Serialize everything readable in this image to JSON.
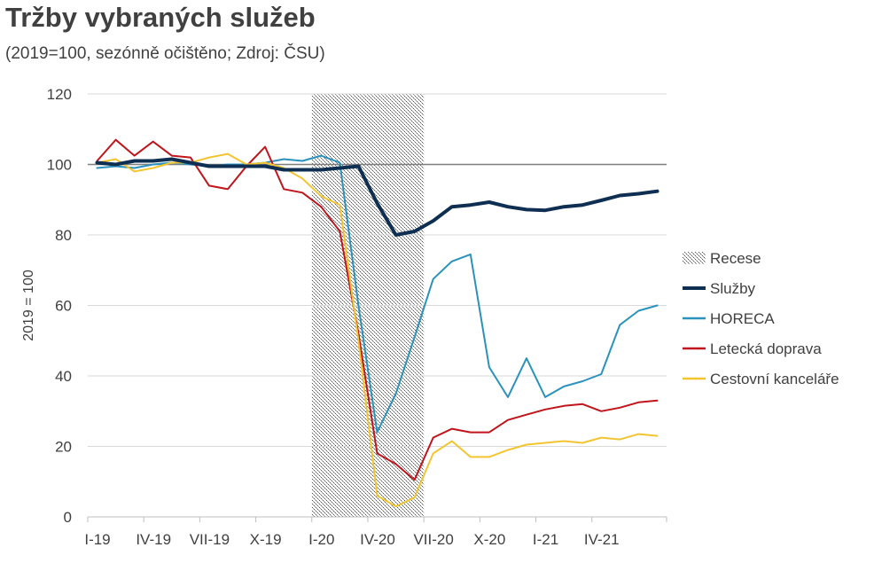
{
  "chart_data": {
    "type": "line",
    "title": "Tržby vybraných služeb",
    "subtitle": "(2019=100, sezónně očištěno; Zdroj: ČSU)",
    "ylabel": "2019 = 100",
    "xlabel": "",
    "ylim": [
      0,
      120
    ],
    "yticks": [
      0,
      20,
      40,
      60,
      80,
      100,
      120
    ],
    "grid": true,
    "legend_position": "right",
    "reference_line": 100,
    "x_tick_labels": [
      "I-19",
      "IV-19",
      "VII-19",
      "X-19",
      "I-20",
      "IV-20",
      "VII-20",
      "X-20",
      "I-21",
      "IV-21"
    ],
    "x_tick_every": 3,
    "x_count": 31,
    "recession": {
      "name": "Recese",
      "start_month_index": 12,
      "end_month_index": 18
    },
    "series": [
      {
        "name": "Služby",
        "color": "#0e2f52",
        "width": 4,
        "values": [
          100.5,
          100.0,
          101.0,
          101.0,
          101.5,
          100.5,
          99.5,
          99.5,
          99.5,
          99.5,
          98.5,
          98.5,
          98.5,
          99.0,
          99.5,
          89.0,
          80.0,
          81.0,
          84.0,
          88.0,
          88.5,
          89.3,
          88.0,
          87.2,
          87.0,
          88.0,
          88.5,
          89.8,
          91.2,
          91.7,
          92.4
        ]
      },
      {
        "name": "HORECA",
        "color": "#2a92bd",
        "width": 2,
        "values": [
          99.0,
          99.5,
          99.0,
          100.0,
          100.5,
          100.0,
          99.5,
          100.0,
          100.0,
          100.5,
          101.5,
          101.0,
          102.5,
          100.5,
          60.0,
          24.0,
          35.0,
          51.0,
          67.5,
          72.5,
          74.5,
          42.5,
          34.0,
          45.0,
          34.0,
          37.0,
          38.5,
          40.5,
          54.5,
          58.5,
          60.0
        ]
      },
      {
        "name": "Letecká doprava",
        "color": "#c0151c",
        "width": 2,
        "values": [
          101.0,
          107.0,
          102.5,
          106.5,
          102.5,
          102.0,
          94.0,
          93.0,
          99.5,
          105.0,
          93.0,
          92.0,
          88.0,
          81.0,
          52.0,
          18.0,
          15.0,
          10.5,
          22.5,
          25.0,
          24.0,
          24.0,
          27.5,
          29.0,
          30.5,
          31.5,
          32.0,
          30.0,
          31.0,
          32.5,
          33.0
        ]
      },
      {
        "name": "Cestovní kanceláře",
        "color": "#f2c530",
        "width": 2,
        "values": [
          100.5,
          101.5,
          98.0,
          99.0,
          100.5,
          100.5,
          102.0,
          103.0,
          100.0,
          100.5,
          99.0,
          96.0,
          91.0,
          88.5,
          50.0,
          6.0,
          3.0,
          5.5,
          18.0,
          21.5,
          17.0,
          17.0,
          19.0,
          20.5,
          21.0,
          21.5,
          21.0,
          22.5,
          22.0,
          23.5,
          23.0
        ]
      }
    ]
  }
}
